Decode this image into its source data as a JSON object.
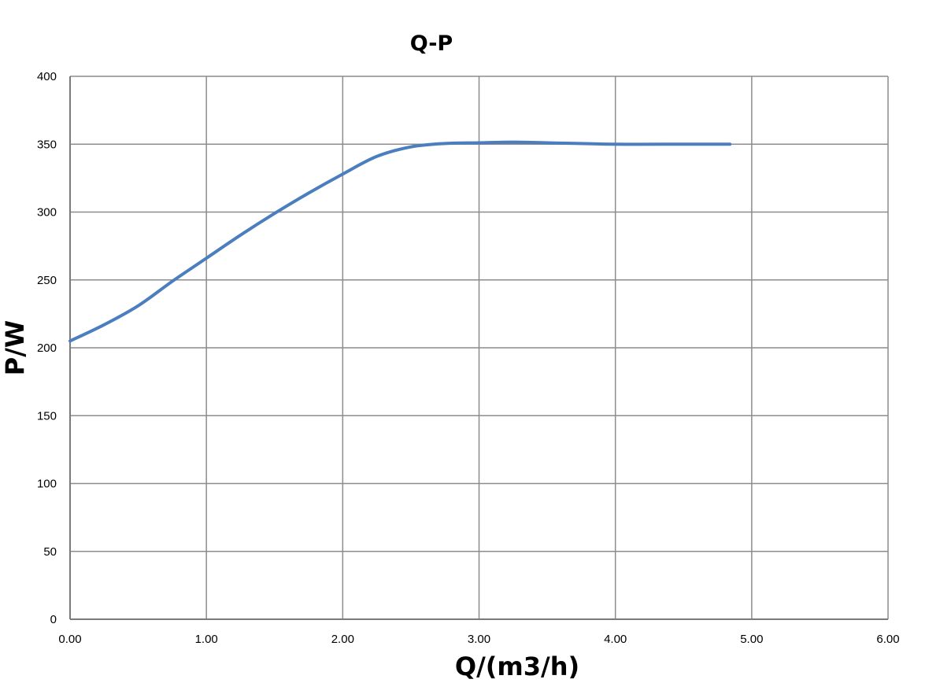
{
  "chart_data": {
    "type": "line",
    "title": "Q-P",
    "xlabel": "Q/(m3/h)",
    "ylabel": "P/W",
    "xlim": [
      0,
      6
    ],
    "ylim": [
      0,
      400
    ],
    "xticks": [
      "0.00",
      "1.00",
      "2.00",
      "3.00",
      "4.00",
      "5.00",
      "6.00"
    ],
    "yticks": [
      "0",
      "50",
      "100",
      "150",
      "200",
      "250",
      "300",
      "350",
      "400"
    ],
    "grid": true,
    "legend": "none",
    "series": [
      {
        "color": "#4a7ebf",
        "x": [
          0,
          0.25,
          0.5,
          0.75,
          1.0,
          1.25,
          1.5,
          1.75,
          2.0,
          2.25,
          2.5,
          2.75,
          3.0,
          3.25,
          3.5,
          4.0,
          4.5,
          4.84
        ],
        "y": [
          205,
          217,
          231,
          249,
          266,
          283,
          299,
          314,
          328,
          341,
          348,
          350.5,
          351,
          351.5,
          351,
          350,
          350,
          350
        ]
      }
    ]
  }
}
